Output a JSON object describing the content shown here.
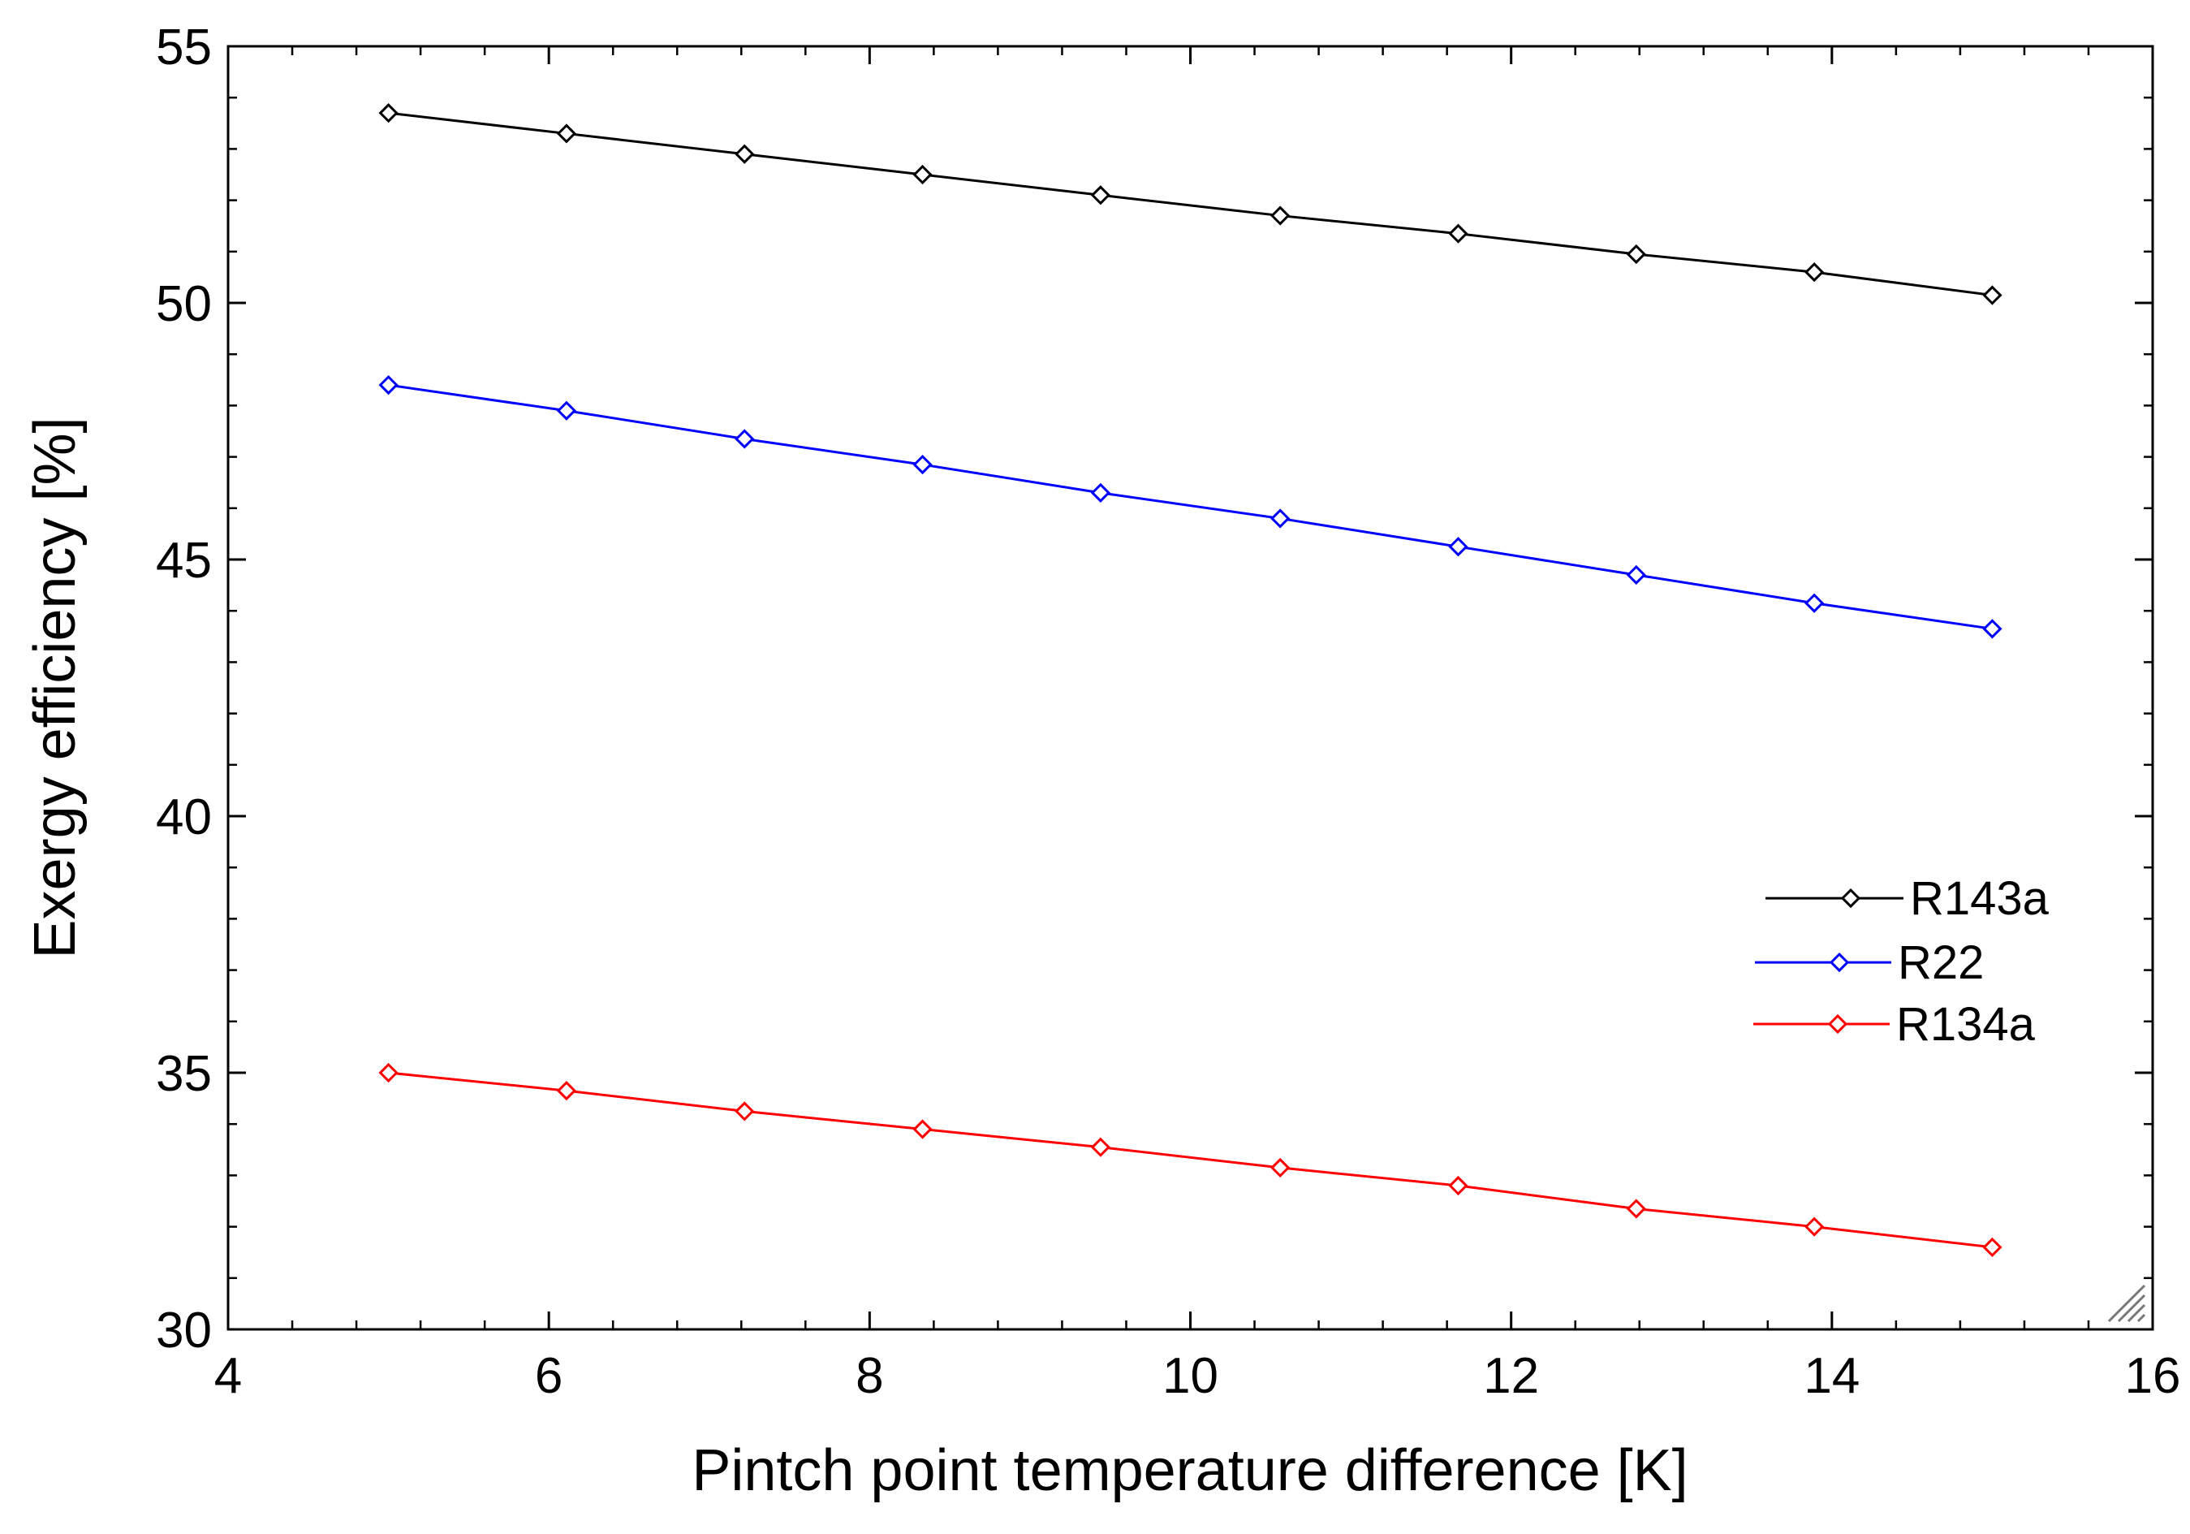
{
  "chart_data": {
    "type": "line",
    "title": "",
    "xlabel": "Pintch point temperature difference [K]",
    "ylabel": "Exergy efficiency [%]",
    "xlim": [
      4,
      16
    ],
    "ylim": [
      30,
      55
    ],
    "xticks": [
      4,
      6,
      8,
      10,
      12,
      14,
      16
    ],
    "yticks": [
      30,
      35,
      40,
      45,
      50,
      55
    ],
    "x": [
      5.0,
      6.11,
      7.22,
      8.33,
      9.44,
      10.56,
      11.67,
      12.78,
      13.89,
      15.0
    ],
    "grid": false,
    "legend_position": "right-middle",
    "series": [
      {
        "name": "R143a",
        "color": "#000000",
        "values": [
          53.7,
          53.3,
          52.9,
          52.5,
          52.1,
          51.7,
          51.35,
          50.95,
          50.6,
          50.15
        ]
      },
      {
        "name": "R22",
        "color": "#0000ff",
        "values": [
          48.4,
          47.9,
          47.35,
          46.85,
          46.3,
          45.8,
          45.25,
          44.7,
          44.15,
          43.65
        ]
      },
      {
        "name": "R134a",
        "color": "#ff0000",
        "values": [
          35.0,
          34.65,
          34.25,
          33.9,
          33.55,
          33.15,
          32.8,
          32.35,
          32.0,
          31.6
        ]
      }
    ]
  }
}
